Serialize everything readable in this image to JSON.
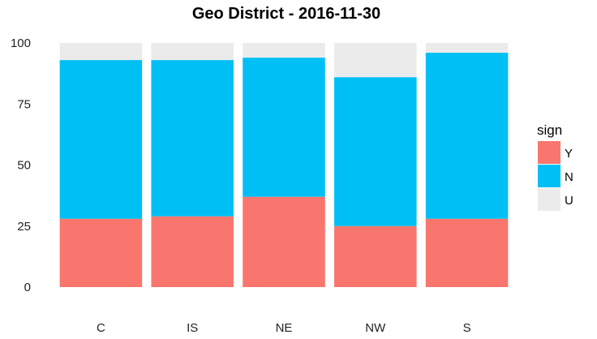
{
  "chart_data": {
    "type": "bar",
    "stacked": true,
    "title": "Geo District - 2016-11-30",
    "xlabel": "",
    "ylabel": "",
    "categories": [
      "C",
      "IS",
      "NE",
      "NW",
      "S"
    ],
    "ylim": [
      0,
      100
    ],
    "yticks": [
      0,
      25,
      50,
      75,
      100
    ],
    "ytick_labels": [
      "0",
      "25",
      "50",
      "75",
      "100"
    ],
    "grid": false,
    "legend": {
      "title": "sign",
      "position": "right"
    },
    "series": [
      {
        "name": "Y",
        "color": "#F8766D",
        "values": [
          28,
          29,
          37,
          25,
          28
        ]
      },
      {
        "name": "N",
        "color": "#00BFF5",
        "values": [
          65,
          64,
          57,
          61,
          68
        ]
      },
      {
        "name": "U",
        "color": "#EBEBEB",
        "values": [
          7,
          7,
          6,
          14,
          4
        ]
      }
    ]
  }
}
